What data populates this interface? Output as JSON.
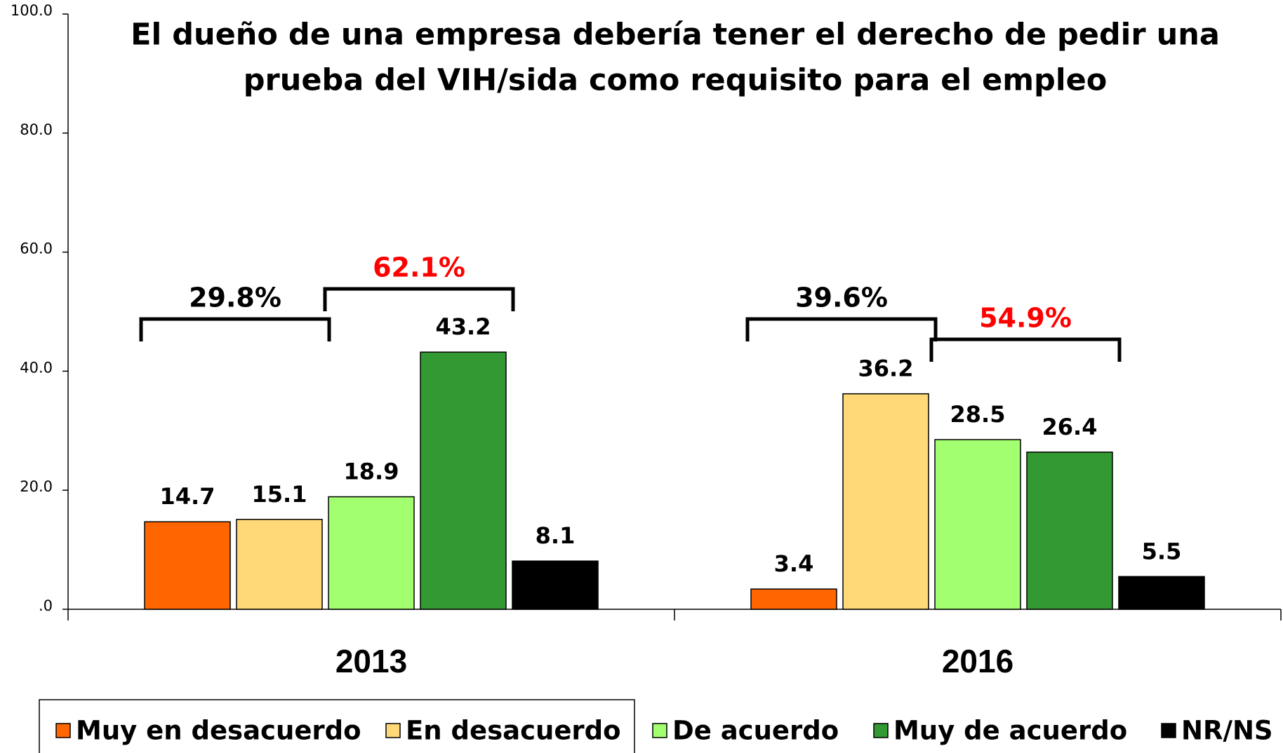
{
  "chart_data": {
    "type": "bar",
    "title": [
      "El dueño de una empresa debería tener el derecho de pedir una",
      "prueba del VIH/sida como requisito para el empleo"
    ],
    "categories": [
      "2013",
      "2016"
    ],
    "series": [
      {
        "name": "Muy en desacuerdo",
        "color": "#ff6600",
        "values": [
          14.7,
          3.4
        ]
      },
      {
        "name": "En desacuerdo",
        "color": "#ffd978",
        "values": [
          15.1,
          36.2
        ]
      },
      {
        "name": "De acuerdo",
        "color": "#a2ff6f",
        "values": [
          18.9,
          28.5
        ]
      },
      {
        "name": "Muy de acuerdo",
        "color": "#339933",
        "values": [
          43.2,
          26.4
        ]
      },
      {
        "name": "NR/NS",
        "color": "#000000",
        "values": [
          8.1,
          5.5
        ]
      }
    ],
    "ylim": [
      0,
      100
    ],
    "yticks": [
      {
        "value": 0,
        "label": ".0"
      },
      {
        "value": 20,
        "label": "20.0"
      },
      {
        "value": 40,
        "label": "40.0"
      },
      {
        "value": 60,
        "label": "60.0"
      },
      {
        "value": 80,
        "label": "80.0"
      },
      {
        "value": 100,
        "label": "100.0"
      }
    ],
    "annotations": [
      {
        "text": "29.8%",
        "color": "#000000"
      },
      {
        "text": "62.1%",
        "color": "#ff0000"
      },
      {
        "text": "39.6%",
        "color": "#000000"
      },
      {
        "text": "54.9%",
        "color": "#ff0000"
      }
    ],
    "legend": "bottom"
  }
}
